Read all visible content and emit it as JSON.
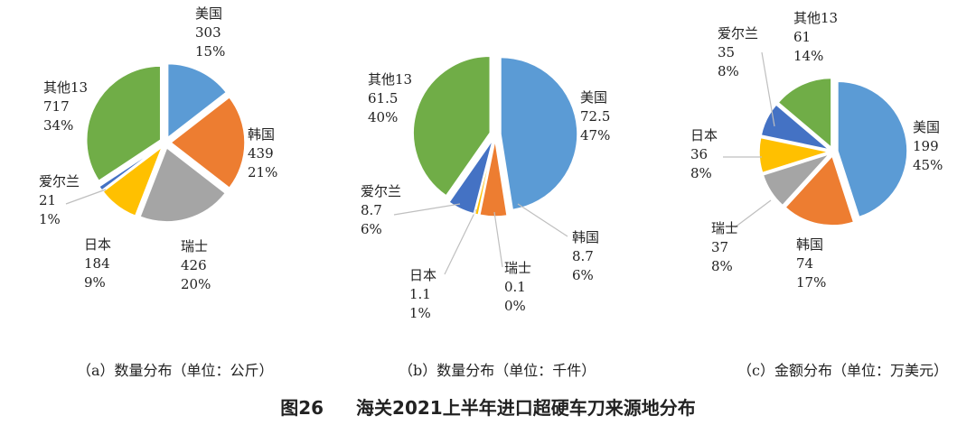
{
  "colors": {
    "美国": "#5b9bd5",
    "韩国": "#ed7d31",
    "瑞士": "#a5a5a5",
    "日本": "#ffc000",
    "爱尔兰": "#4472c4",
    "其他13": "#70ad47"
  },
  "figure": {
    "caption_number": "图26",
    "caption_text": "海关2021上半年进口超硬车刀来源地分布"
  },
  "chart_data": [
    {
      "type": "pie",
      "caption": "（a）数量分布（单位：公斤）",
      "slices": [
        {
          "name": "美国",
          "value": 303,
          "value_text": "303",
          "percent_text": "15%"
        },
        {
          "name": "韩国",
          "value": 439,
          "value_text": "439",
          "percent_text": "21%"
        },
        {
          "name": "瑞士",
          "value": 426,
          "value_text": "426",
          "percent_text": "20%"
        },
        {
          "name": "日本",
          "value": 184,
          "value_text": "184",
          "percent_text": "9%"
        },
        {
          "name": "爱尔兰",
          "value": 21,
          "value_text": "21",
          "percent_text": "1%"
        },
        {
          "name": "其他13",
          "value": 717,
          "value_text": "717",
          "percent_text": "34%"
        }
      ]
    },
    {
      "type": "pie",
      "caption": "（b）数量分布（单位：千件）",
      "slices": [
        {
          "name": "美国",
          "value": 72.5,
          "value_text": "72.5",
          "percent_text": "47%"
        },
        {
          "name": "韩国",
          "value": 8.7,
          "value_text": "8.7",
          "percent_text": "6%"
        },
        {
          "name": "瑞士",
          "value": 0.1,
          "value_text": "0.1",
          "percent_text": "0%"
        },
        {
          "name": "日本",
          "value": 1.1,
          "value_text": "1.1",
          "percent_text": "1%"
        },
        {
          "name": "爱尔兰",
          "value": 8.7,
          "value_text": "8.7",
          "percent_text": "6%"
        },
        {
          "name": "其他13",
          "value": 61.5,
          "value_text": "61.5",
          "percent_text": "40%"
        }
      ]
    },
    {
      "type": "pie",
      "caption": "（c）金额分布（单位：万美元）",
      "slices": [
        {
          "name": "美国",
          "value": 199,
          "value_text": "199",
          "percent_text": "45%"
        },
        {
          "name": "韩国",
          "value": 74,
          "value_text": "74",
          "percent_text": "17%"
        },
        {
          "name": "瑞士",
          "value": 37,
          "value_text": "37",
          "percent_text": "8%"
        },
        {
          "name": "日本",
          "value": 36,
          "value_text": "36",
          "percent_text": "8%"
        },
        {
          "name": "爱尔兰",
          "value": 35,
          "value_text": "35",
          "percent_text": "8%"
        },
        {
          "name": "其他13",
          "value": 61,
          "value_text": "61",
          "percent_text": "14%"
        }
      ]
    }
  ]
}
